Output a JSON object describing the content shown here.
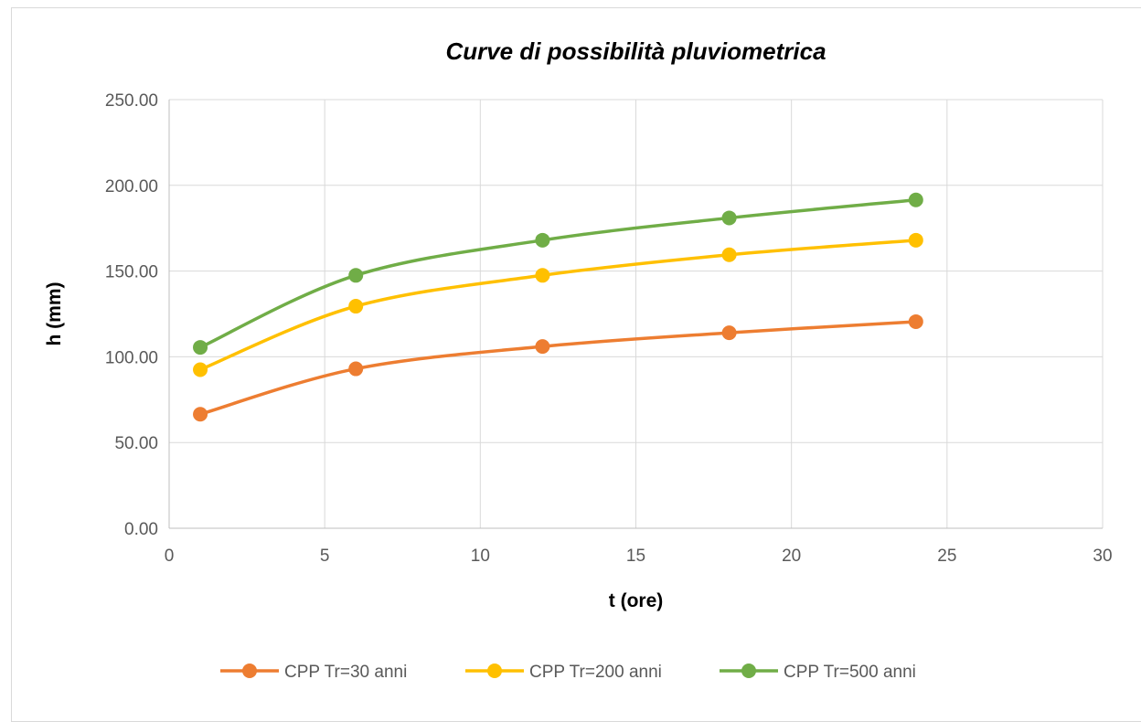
{
  "chart_data": {
    "type": "scatter",
    "title": "Curve di possibilità pluviometrica",
    "xlabel": "t (ore)",
    "ylabel": "h (mm)",
    "xlim": [
      0,
      30
    ],
    "ylim": [
      0,
      250
    ],
    "x_ticks": [
      "0",
      "5",
      "10",
      "15",
      "20",
      "25",
      "30"
    ],
    "y_ticks": [
      "0.00",
      "50.00",
      "100.00",
      "150.00",
      "200.00",
      "250.00"
    ],
    "x": [
      1,
      6,
      12,
      18,
      24
    ],
    "grid": true,
    "smooth_lines": true,
    "legend_position": "bottom",
    "series": [
      {
        "name": "CPP Tr=30 anni",
        "color": "#ED7D31",
        "values": [
          66.5,
          93.0,
          106.0,
          114.0,
          120.5
        ]
      },
      {
        "name": "CPP Tr=200 anni",
        "color": "#FFC000",
        "values": [
          92.5,
          129.5,
          147.5,
          159.5,
          168.0
        ]
      },
      {
        "name": "CPP Tr=500 anni",
        "color": "#70AD47",
        "values": [
          105.5,
          147.5,
          168.0,
          181.0,
          191.5
        ]
      }
    ]
  }
}
